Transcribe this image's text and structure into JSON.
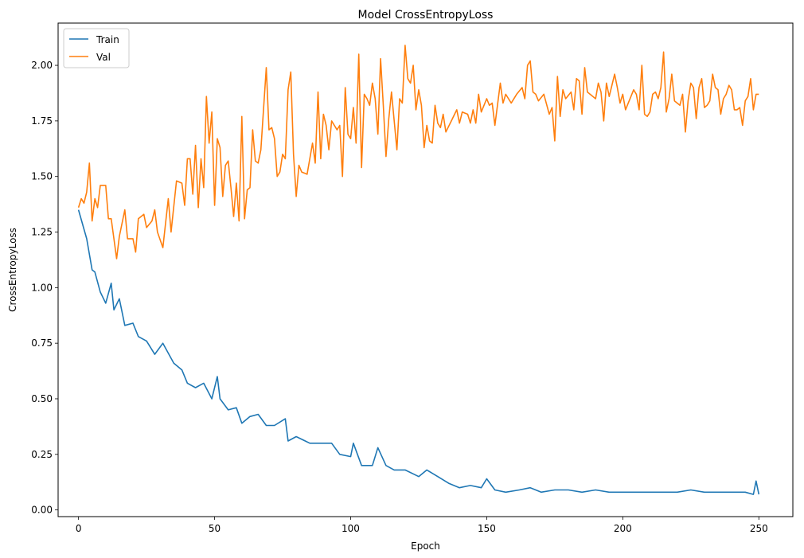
{
  "chart_data": {
    "type": "line",
    "title": "Model CrossEntropyLoss",
    "xlabel": "Epoch",
    "ylabel": "CrossEntropyLoss",
    "xlim": [
      -7.5,
      262.5
    ],
    "ylim": [
      -0.03,
      2.19
    ],
    "xticks": [
      0,
      50,
      100,
      150,
      200,
      250
    ],
    "xtick_labels": [
      "0",
      "50",
      "100",
      "150",
      "200",
      "250"
    ],
    "yticks": [
      0,
      0.25,
      0.5,
      0.75,
      1.0,
      1.25,
      1.5,
      1.75,
      2.0
    ],
    "ytick_labels": [
      "0.00",
      "0.25",
      "0.50",
      "0.75",
      "1.00",
      "1.25",
      "1.50",
      "1.75",
      "2.00"
    ],
    "grid": false,
    "legend_position": "upper-left",
    "series": [
      {
        "name": "Train",
        "color": "#1f77b4",
        "keypoints": [
          [
            0,
            1.35
          ],
          [
            3,
            1.22
          ],
          [
            5,
            1.08
          ],
          [
            6,
            1.07
          ],
          [
            8,
            0.98
          ],
          [
            10,
            0.93
          ],
          [
            12,
            1.02
          ],
          [
            13,
            0.9
          ],
          [
            15,
            0.95
          ],
          [
            17,
            0.83
          ],
          [
            20,
            0.84
          ],
          [
            22,
            0.78
          ],
          [
            25,
            0.76
          ],
          [
            28,
            0.7
          ],
          [
            31,
            0.75
          ],
          [
            35,
            0.66
          ],
          [
            38,
            0.63
          ],
          [
            40,
            0.57
          ],
          [
            43,
            0.55
          ],
          [
            46,
            0.57
          ],
          [
            49,
            0.5
          ],
          [
            51,
            0.6
          ],
          [
            52,
            0.5
          ],
          [
            55,
            0.45
          ],
          [
            58,
            0.46
          ],
          [
            60,
            0.39
          ],
          [
            63,
            0.42
          ],
          [
            66,
            0.43
          ],
          [
            69,
            0.38
          ],
          [
            72,
            0.38
          ],
          [
            76,
            0.41
          ],
          [
            77,
            0.31
          ],
          [
            80,
            0.33
          ],
          [
            85,
            0.3
          ],
          [
            90,
            0.3
          ],
          [
            93,
            0.3
          ],
          [
            96,
            0.25
          ],
          [
            100,
            0.24
          ],
          [
            101,
            0.3
          ],
          [
            104,
            0.2
          ],
          [
            108,
            0.2
          ],
          [
            110,
            0.28
          ],
          [
            113,
            0.2
          ],
          [
            116,
            0.18
          ],
          [
            120,
            0.18
          ],
          [
            125,
            0.15
          ],
          [
            128,
            0.18
          ],
          [
            132,
            0.15
          ],
          [
            136,
            0.12
          ],
          [
            140,
            0.1
          ],
          [
            144,
            0.11
          ],
          [
            148,
            0.1
          ],
          [
            150,
            0.14
          ],
          [
            153,
            0.09
          ],
          [
            157,
            0.08
          ],
          [
            162,
            0.09
          ],
          [
            166,
            0.1
          ],
          [
            170,
            0.08
          ],
          [
            175,
            0.09
          ],
          [
            180,
            0.09
          ],
          [
            185,
            0.08
          ],
          [
            190,
            0.09
          ],
          [
            195,
            0.08
          ],
          [
            200,
            0.08
          ],
          [
            205,
            0.08
          ],
          [
            210,
            0.08
          ],
          [
            215,
            0.08
          ],
          [
            220,
            0.08
          ],
          [
            225,
            0.09
          ],
          [
            230,
            0.08
          ],
          [
            235,
            0.08
          ],
          [
            240,
            0.08
          ],
          [
            245,
            0.08
          ],
          [
            248,
            0.07
          ],
          [
            249,
            0.13
          ],
          [
            250,
            0.07
          ]
        ]
      },
      {
        "name": "Val",
        "color": "#ff7f0e",
        "keypoints": [
          [
            0,
            1.36
          ],
          [
            1,
            1.4
          ],
          [
            2,
            1.38
          ],
          [
            3,
            1.43
          ],
          [
            4,
            1.56
          ],
          [
            5,
            1.3
          ],
          [
            6,
            1.4
          ],
          [
            7,
            1.36
          ],
          [
            8,
            1.46
          ],
          [
            10,
            1.46
          ],
          [
            11,
            1.31
          ],
          [
            12,
            1.31
          ],
          [
            14,
            1.13
          ],
          [
            15,
            1.23
          ],
          [
            17,
            1.35
          ],
          [
            18,
            1.22
          ],
          [
            20,
            1.22
          ],
          [
            21,
            1.16
          ],
          [
            22,
            1.31
          ],
          [
            24,
            1.33
          ],
          [
            25,
            1.27
          ],
          [
            27,
            1.3
          ],
          [
            28,
            1.35
          ],
          [
            29,
            1.25
          ],
          [
            31,
            1.18
          ],
          [
            33,
            1.4
          ],
          [
            34,
            1.25
          ],
          [
            36,
            1.48
          ],
          [
            38,
            1.47
          ],
          [
            39,
            1.37
          ],
          [
            40,
            1.58
          ],
          [
            41,
            1.58
          ],
          [
            42,
            1.42
          ],
          [
            43,
            1.64
          ],
          [
            44,
            1.36
          ],
          [
            45,
            1.58
          ],
          [
            46,
            1.45
          ],
          [
            47,
            1.86
          ],
          [
            48,
            1.65
          ],
          [
            49,
            1.79
          ],
          [
            50,
            1.37
          ],
          [
            51,
            1.67
          ],
          [
            52,
            1.63
          ],
          [
            53,
            1.41
          ],
          [
            54,
            1.55
          ],
          [
            55,
            1.57
          ],
          [
            56,
            1.45
          ],
          [
            57,
            1.32
          ],
          [
            58,
            1.47
          ],
          [
            59,
            1.3
          ],
          [
            60,
            1.77
          ],
          [
            61,
            1.31
          ],
          [
            62,
            1.44
          ],
          [
            63,
            1.45
          ],
          [
            64,
            1.71
          ],
          [
            65,
            1.57
          ],
          [
            66,
            1.56
          ],
          [
            67,
            1.62
          ],
          [
            69,
            1.99
          ],
          [
            70,
            1.71
          ],
          [
            71,
            1.72
          ],
          [
            72,
            1.67
          ],
          [
            73,
            1.5
          ],
          [
            74,
            1.52
          ],
          [
            75,
            1.6
          ],
          [
            76,
            1.58
          ],
          [
            77,
            1.89
          ],
          [
            78,
            1.97
          ],
          [
            79,
            1.6
          ],
          [
            80,
            1.41
          ],
          [
            81,
            1.55
          ],
          [
            82,
            1.52
          ],
          [
            84,
            1.51
          ],
          [
            86,
            1.65
          ],
          [
            87,
            1.56
          ],
          [
            88,
            1.88
          ],
          [
            89,
            1.58
          ],
          [
            90,
            1.78
          ],
          [
            91,
            1.73
          ],
          [
            92,
            1.62
          ],
          [
            93,
            1.75
          ],
          [
            95,
            1.71
          ],
          [
            96,
            1.73
          ],
          [
            97,
            1.5
          ],
          [
            98,
            1.9
          ],
          [
            99,
            1.69
          ],
          [
            100,
            1.67
          ],
          [
            101,
            1.81
          ],
          [
            102,
            1.65
          ],
          [
            103,
            2.05
          ],
          [
            104,
            1.54
          ],
          [
            105,
            1.87
          ],
          [
            106,
            1.85
          ],
          [
            107,
            1.82
          ],
          [
            108,
            1.92
          ],
          [
            109,
            1.85
          ],
          [
            110,
            1.69
          ],
          [
            111,
            2.03
          ],
          [
            112,
            1.82
          ],
          [
            113,
            1.59
          ],
          [
            114,
            1.76
          ],
          [
            115,
            1.88
          ],
          [
            116,
            1.75
          ],
          [
            117,
            1.62
          ],
          [
            118,
            1.85
          ],
          [
            119,
            1.83
          ],
          [
            120,
            2.09
          ],
          [
            121,
            1.94
          ],
          [
            122,
            1.92
          ],
          [
            123,
            2.0
          ],
          [
            124,
            1.8
          ],
          [
            125,
            1.89
          ],
          [
            126,
            1.82
          ],
          [
            127,
            1.63
          ],
          [
            128,
            1.73
          ],
          [
            129,
            1.66
          ],
          [
            130,
            1.65
          ],
          [
            131,
            1.82
          ],
          [
            132,
            1.74
          ],
          [
            133,
            1.72
          ],
          [
            134,
            1.78
          ],
          [
            135,
            1.7
          ],
          [
            137,
            1.75
          ],
          [
            139,
            1.8
          ],
          [
            140,
            1.74
          ],
          [
            141,
            1.79
          ],
          [
            143,
            1.78
          ],
          [
            144,
            1.74
          ],
          [
            145,
            1.8
          ],
          [
            146,
            1.74
          ],
          [
            147,
            1.87
          ],
          [
            148,
            1.79
          ],
          [
            150,
            1.85
          ],
          [
            151,
            1.82
          ],
          [
            152,
            1.83
          ],
          [
            153,
            1.73
          ],
          [
            155,
            1.92
          ],
          [
            156,
            1.83
          ],
          [
            157,
            1.87
          ],
          [
            159,
            1.83
          ],
          [
            161,
            1.87
          ],
          [
            163,
            1.9
          ],
          [
            164,
            1.85
          ],
          [
            165,
            2.0
          ],
          [
            166,
            2.02
          ],
          [
            167,
            1.88
          ],
          [
            168,
            1.87
          ],
          [
            169,
            1.84
          ],
          [
            171,
            1.87
          ],
          [
            173,
            1.78
          ],
          [
            174,
            1.81
          ],
          [
            175,
            1.66
          ],
          [
            176,
            1.95
          ],
          [
            177,
            1.77
          ],
          [
            178,
            1.89
          ],
          [
            179,
            1.85
          ],
          [
            181,
            1.88
          ],
          [
            182,
            1.8
          ],
          [
            183,
            1.94
          ],
          [
            184,
            1.93
          ],
          [
            185,
            1.78
          ],
          [
            186,
            1.99
          ],
          [
            187,
            1.88
          ],
          [
            190,
            1.85
          ],
          [
            191,
            1.92
          ],
          [
            192,
            1.88
          ],
          [
            193,
            1.75
          ],
          [
            194,
            1.92
          ],
          [
            195,
            1.86
          ],
          [
            197,
            1.96
          ],
          [
            198,
            1.9
          ],
          [
            199,
            1.83
          ],
          [
            200,
            1.87
          ],
          [
            201,
            1.8
          ],
          [
            203,
            1.86
          ],
          [
            204,
            1.89
          ],
          [
            205,
            1.87
          ],
          [
            206,
            1.8
          ],
          [
            207,
            2.0
          ],
          [
            208,
            1.78
          ],
          [
            209,
            1.77
          ],
          [
            210,
            1.79
          ],
          [
            211,
            1.87
          ],
          [
            212,
            1.88
          ],
          [
            213,
            1.85
          ],
          [
            214,
            1.9
          ],
          [
            215,
            2.06
          ],
          [
            216,
            1.79
          ],
          [
            217,
            1.85
          ],
          [
            218,
            1.96
          ],
          [
            219,
            1.84
          ],
          [
            220,
            1.83
          ],
          [
            221,
            1.82
          ],
          [
            222,
            1.87
          ],
          [
            223,
            1.7
          ],
          [
            224,
            1.84
          ],
          [
            225,
            1.92
          ],
          [
            226,
            1.9
          ],
          [
            227,
            1.76
          ],
          [
            228,
            1.9
          ],
          [
            229,
            1.94
          ],
          [
            230,
            1.81
          ],
          [
            231,
            1.82
          ],
          [
            232,
            1.84
          ],
          [
            233,
            1.96
          ],
          [
            234,
            1.9
          ],
          [
            235,
            1.89
          ],
          [
            236,
            1.78
          ],
          [
            237,
            1.85
          ],
          [
            238,
            1.87
          ],
          [
            239,
            1.91
          ],
          [
            240,
            1.89
          ],
          [
            241,
            1.8
          ],
          [
            242,
            1.8
          ],
          [
            243,
            1.81
          ],
          [
            244,
            1.73
          ],
          [
            245,
            1.84
          ],
          [
            246,
            1.86
          ],
          [
            247,
            1.94
          ],
          [
            248,
            1.8
          ],
          [
            249,
            1.87
          ],
          [
            250,
            1.87
          ]
        ]
      }
    ]
  }
}
